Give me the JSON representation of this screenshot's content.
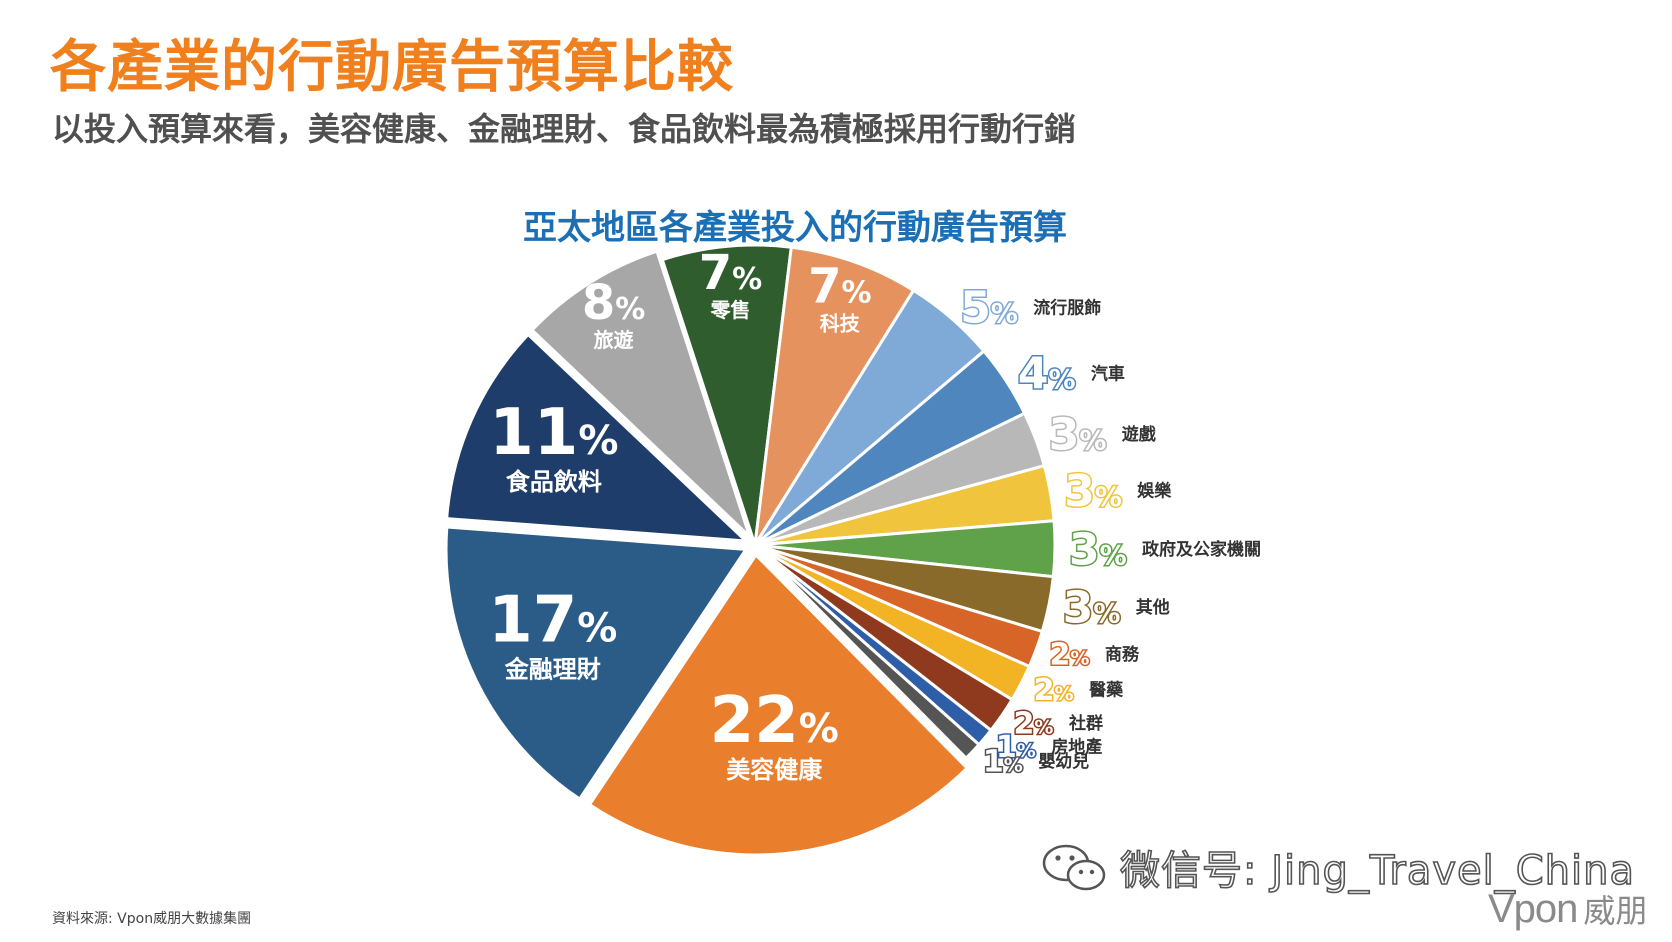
{
  "header": {
    "title": "各產業的行動廣告預算比較",
    "subtitle": "以投入預算來看，美容健康、金融理財、食品飲料最為積極採用行動行銷"
  },
  "chart_data": {
    "type": "pie",
    "title": "亞太地區各產業投入的行動廣告預算",
    "unit": "%",
    "slices": [
      {
        "label": "零售",
        "value": 7,
        "color": "#2f5d2e"
      },
      {
        "label": "科技",
        "value": 7,
        "color": "#e6925e"
      },
      {
        "label": "流行服飾",
        "value": 5,
        "color": "#7fa9d6"
      },
      {
        "label": "汽車",
        "value": 4,
        "color": "#4f86bd"
      },
      {
        "label": "遊戲",
        "value": 3,
        "color": "#b8b8b8"
      },
      {
        "label": "娛樂",
        "value": 3,
        "color": "#f0c43c"
      },
      {
        "label": "政府及公家機關",
        "value": 3,
        "color": "#5fa24a"
      },
      {
        "label": "其他",
        "value": 3,
        "color": "#8a6a2a"
      },
      {
        "label": "商務",
        "value": 2,
        "color": "#d86528"
      },
      {
        "label": "醫藥",
        "value": 2,
        "color": "#f2b324"
      },
      {
        "label": "社群",
        "value": 2,
        "color": "#8f3a1e"
      },
      {
        "label": "房地產",
        "value": 1,
        "color": "#2f5ea8"
      },
      {
        "label": "嬰幼兒",
        "value": 1,
        "color": "#555555"
      },
      {
        "label": "美容健康",
        "value": 22,
        "color": "#e97e2c"
      },
      {
        "label": "金融理財",
        "value": 17,
        "color": "#2b5c88"
      },
      {
        "label": "食品飲料",
        "value": 11,
        "color": "#1f3d6b"
      },
      {
        "label": "旅遊",
        "value": 8,
        "color": "#a7a7a7"
      }
    ]
  },
  "footer": {
    "source": "資料來源: Vpon威朋大數據集團",
    "watermark": "微信号: Jing_Travel_China",
    "logo_latin": "Vpon",
    "logo_cjk": "威朋"
  }
}
